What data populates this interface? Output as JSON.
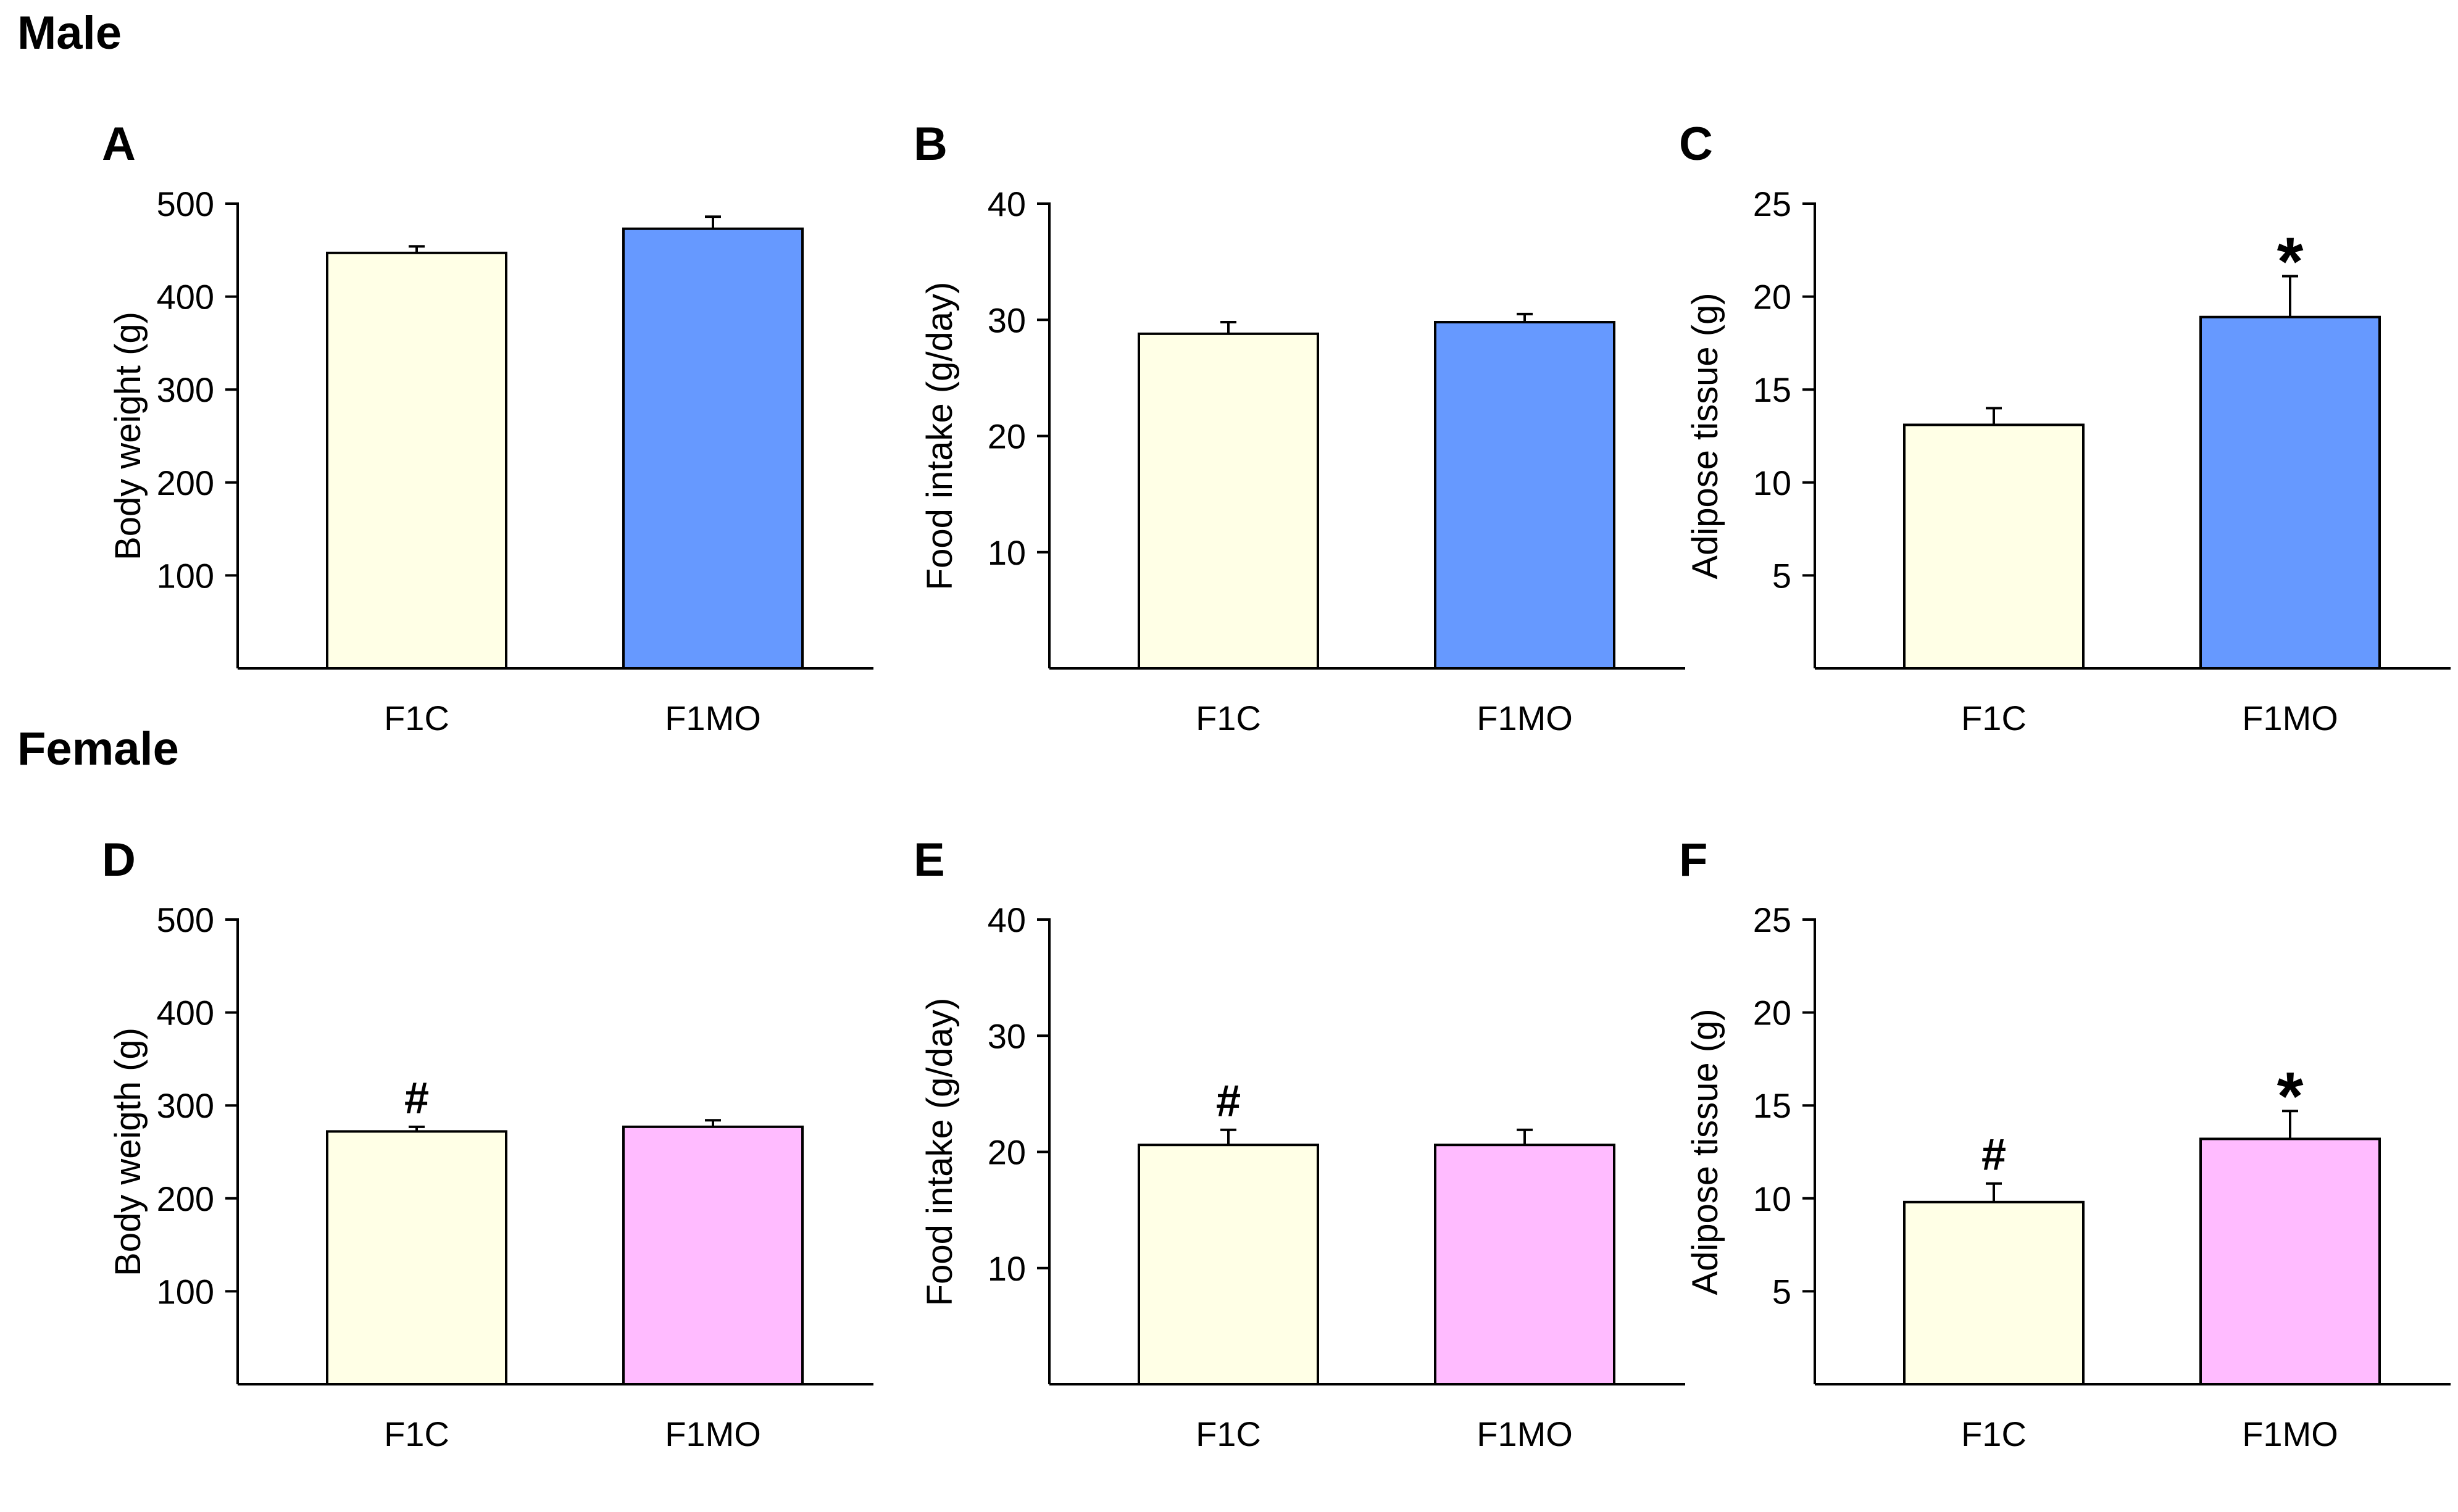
{
  "sections": {
    "male": "Male",
    "female": "Female"
  },
  "colors": {
    "control": "#FFFFE6",
    "male_mo": "#6699FF",
    "female_mo": "#FFBBFF",
    "axis": "#000000"
  },
  "chart_data": [
    {
      "panel": "A",
      "type": "bar",
      "categories": [
        "F1C",
        "F1MO"
      ],
      "values": [
        447,
        473
      ],
      "errors": [
        7,
        13
      ],
      "annotations": [
        "",
        ""
      ],
      "ylabel": "Body weight (g)",
      "ylim": [
        0,
        500
      ],
      "yticks": [
        100,
        200,
        300,
        400,
        500
      ]
    },
    {
      "panel": "B",
      "type": "bar",
      "categories": [
        "F1C",
        "F1MO"
      ],
      "values": [
        28.8,
        29.8
      ],
      "errors": [
        1.0,
        0.7
      ],
      "annotations": [
        "",
        ""
      ],
      "ylabel": "Food intake (g/day)",
      "ylim": [
        0,
        40
      ],
      "yticks": [
        10,
        20,
        30,
        40
      ]
    },
    {
      "panel": "C",
      "type": "bar",
      "categories": [
        "F1C",
        "F1MO"
      ],
      "values": [
        13.1,
        18.9
      ],
      "errors": [
        0.9,
        2.2
      ],
      "annotations": [
        "",
        "*"
      ],
      "ylabel": "Adipose tissue (g)",
      "ylim": [
        0,
        25
      ],
      "yticks": [
        5,
        10,
        15,
        20,
        25
      ]
    },
    {
      "panel": "D",
      "type": "bar",
      "categories": [
        "F1C",
        "F1MO"
      ],
      "values": [
        272,
        277
      ],
      "errors": [
        5,
        7
      ],
      "annotations": [
        "#",
        ""
      ],
      "ylabel": "Body weigth (g)",
      "ylim": [
        0,
        500
      ],
      "yticks": [
        100,
        200,
        300,
        400,
        500
      ]
    },
    {
      "panel": "E",
      "type": "bar",
      "categories": [
        "F1C",
        "F1MO"
      ],
      "values": [
        20.6,
        20.6
      ],
      "errors": [
        1.3,
        1.3
      ],
      "annotations": [
        "#",
        ""
      ],
      "ylabel": "Food intake (g/day)",
      "ylim": [
        0,
        40
      ],
      "yticks": [
        10,
        20,
        30,
        40
      ]
    },
    {
      "panel": "F",
      "type": "bar",
      "categories": [
        "F1C",
        "F1MO"
      ],
      "values": [
        9.8,
        13.2
      ],
      "errors": [
        1.0,
        1.5
      ],
      "annotations": [
        "#",
        "*"
      ],
      "ylabel": "Adipose tissue (g)",
      "ylim": [
        0,
        25
      ],
      "yticks": [
        5,
        10,
        15,
        20,
        25
      ]
    }
  ]
}
